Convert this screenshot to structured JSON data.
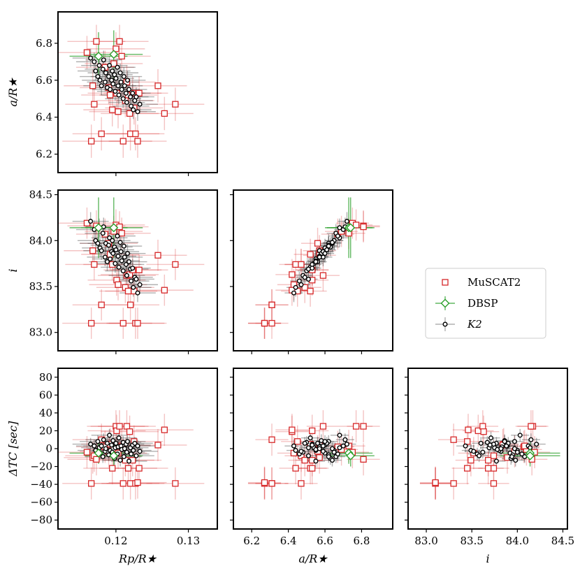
{
  "chart_data": {
    "type": "corner-scatter",
    "legend": {
      "placement": "right-middle",
      "entries": [
        {
          "name": "MuSCAT2",
          "marker": "square",
          "color": "#d62728"
        },
        {
          "name": "DBSP",
          "marker": "diamond",
          "color": "#2ca02c"
        },
        {
          "name": "K2",
          "marker": "circle",
          "color": "#000000"
        }
      ]
    },
    "variables": {
      "rp": {
        "label": "Rp/R★",
        "range": [
          0.112,
          0.134
        ],
        "ticks": [
          0.12,
          0.13
        ],
        "tick_labels": [
          "0.12",
          "0.13"
        ]
      },
      "a": {
        "label": "a/R★",
        "range": [
          6.1,
          6.97
        ],
        "ticks": [
          6.2,
          6.4,
          6.6,
          6.8
        ],
        "tick_labels": [
          "6.2",
          "6.4",
          "6.6",
          "6.8"
        ]
      },
      "i": {
        "label": "i",
        "range": [
          82.8,
          84.55
        ],
        "ticks": [
          83.0,
          83.5,
          84.0,
          84.5
        ],
        "tick_labels": [
          "83.0",
          "83.5",
          "84.0",
          "84.5"
        ]
      },
      "dt": {
        "label": "ΔTC [sec]",
        "range": [
          -90,
          90
        ],
        "ticks": [
          -80,
          -60,
          -40,
          -20,
          0,
          20,
          40,
          60,
          80
        ],
        "tick_labels": [
          "−80",
          "−60",
          "−40",
          "−20",
          "0",
          "20",
          "40",
          "60",
          "80"
        ]
      }
    },
    "panels": [
      {
        "name": "a-vs-rp",
        "x": "rp",
        "y": "a",
        "show_x_ticklabels": false,
        "show_y_ticklabels": true
      },
      {
        "name": "i-vs-rp",
        "x": "rp",
        "y": "i",
        "show_x_ticklabels": false,
        "show_y_ticklabels": true
      },
      {
        "name": "i-vs-a",
        "x": "a",
        "y": "i",
        "show_x_ticklabels": false,
        "show_y_ticklabels": false
      },
      {
        "name": "dt-vs-rp",
        "x": "rp",
        "y": "dt",
        "show_x_ticklabels": true,
        "show_y_ticklabels": true
      },
      {
        "name": "dt-vs-a",
        "x": "a",
        "y": "dt",
        "show_x_ticklabels": true,
        "show_y_ticklabels": false
      },
      {
        "name": "dt-vs-i",
        "x": "i",
        "y": "dt",
        "show_x_ticklabels": true,
        "show_y_ticklabels": false
      }
    ],
    "series": [
      {
        "name": "MuSCAT2",
        "errors": {
          "rp": 0.004,
          "a": 0.09,
          "i": 0.17,
          "dt": 18
        },
        "points": [
          {
            "rp": 0.116,
            "a": 6.75,
            "i": 84.19,
            "dt": -4
          },
          {
            "rp": 0.1168,
            "a": 6.57,
            "i": 83.89,
            "dt": -10
          },
          {
            "rp": 0.117,
            "a": 6.47,
            "i": 83.74,
            "dt": -8
          },
          {
            "rp": 0.1166,
            "a": 6.27,
            "i": 83.1,
            "dt": -39
          },
          {
            "rp": 0.1173,
            "a": 6.81,
            "i": 84.16,
            "dt": -12
          },
          {
            "rp": 0.118,
            "a": 6.31,
            "i": 83.3,
            "dt": 10
          },
          {
            "rp": 0.1185,
            "a": 6.67,
            "i": 84.07,
            "dt": 2
          },
          {
            "rp": 0.119,
            "a": 6.56,
            "i": 83.97,
            "dt": -3
          },
          {
            "rp": 0.1192,
            "a": 6.52,
            "i": 83.85,
            "dt": 5
          },
          {
            "rp": 0.1195,
            "a": 6.44,
            "i": 83.74,
            "dt": -22
          },
          {
            "rp": 0.1197,
            "a": 6.69,
            "i": 84.1,
            "dt": -1
          },
          {
            "rp": 0.12,
            "a": 6.77,
            "i": 84.17,
            "dt": 25
          },
          {
            "rp": 0.1201,
            "a": 6.53,
            "i": 83.57,
            "dt": 20
          },
          {
            "rp": 0.1203,
            "a": 6.43,
            "i": 83.52,
            "dt": -5
          },
          {
            "rp": 0.1205,
            "a": 6.81,
            "i": 84.15,
            "dt": 25
          },
          {
            "rp": 0.1208,
            "a": 6.73,
            "i": 84.08,
            "dt": 3
          },
          {
            "rp": 0.121,
            "a": 6.27,
            "i": 83.1,
            "dt": -39
          },
          {
            "rp": 0.1213,
            "a": 6.49,
            "i": 83.49,
            "dt": -13
          },
          {
            "rp": 0.1215,
            "a": 6.59,
            "i": 83.62,
            "dt": 25
          },
          {
            "rp": 0.1217,
            "a": 6.52,
            "i": 83.45,
            "dt": -22
          },
          {
            "rp": 0.1219,
            "a": 6.42,
            "i": 83.63,
            "dt": 19
          },
          {
            "rp": 0.122,
            "a": 6.31,
            "i": 83.3,
            "dt": -39
          },
          {
            "rp": 0.1223,
            "a": 6.53,
            "i": 83.68,
            "dt": -13
          },
          {
            "rp": 0.1225,
            "a": 6.45,
            "i": 83.45,
            "dt": 8
          },
          {
            "rp": 0.1227,
            "a": 6.31,
            "i": 83.1,
            "dt": -39
          },
          {
            "rp": 0.123,
            "a": 6.27,
            "i": 83.1,
            "dt": -38
          },
          {
            "rp": 0.1232,
            "a": 6.53,
            "i": 83.68,
            "dt": -22
          },
          {
            "rp": 0.1258,
            "a": 6.57,
            "i": 83.84,
            "dt": 4
          },
          {
            "rp": 0.1267,
            "a": 6.42,
            "i": 83.46,
            "dt": 21
          },
          {
            "rp": 0.1282,
            "a": 6.47,
            "i": 83.74,
            "dt": -39
          }
        ]
      },
      {
        "name": "DBSP",
        "errors": {
          "rp": 0.004,
          "a": 0.13,
          "i": 0.33,
          "dt": 12
        },
        "points": [
          {
            "rp": 0.1176,
            "a": 6.73,
            "i": 84.14,
            "dt": -5
          },
          {
            "rp": 0.1197,
            "a": 6.74,
            "i": 84.14,
            "dt": -8
          }
        ]
      },
      {
        "name": "K2",
        "errors": {
          "rp": 0.0025,
          "a": 0.05,
          "i": 0.1,
          "dt": 7
        },
        "points": [
          {
            "rp": 0.1165,
            "a": 6.72,
            "i": 84.21,
            "dt": 5
          },
          {
            "rp": 0.117,
            "a": 6.7,
            "i": 84.12,
            "dt": 3
          },
          {
            "rp": 0.1172,
            "a": 6.65,
            "i": 84.0,
            "dt": -2
          },
          {
            "rp": 0.1175,
            "a": 6.62,
            "i": 83.97,
            "dt": 8
          },
          {
            "rp": 0.1177,
            "a": 6.68,
            "i": 84.14,
            "dt": 1
          },
          {
            "rp": 0.1178,
            "a": 6.6,
            "i": 83.92,
            "dt": -5
          },
          {
            "rp": 0.118,
            "a": 6.57,
            "i": 83.89,
            "dt": 3
          },
          {
            "rp": 0.1182,
            "a": 6.66,
            "i": 84.08,
            "dt": -9
          },
          {
            "rp": 0.1183,
            "a": 6.71,
            "i": 84.15,
            "dt": 10
          },
          {
            "rp": 0.1185,
            "a": 6.59,
            "i": 83.82,
            "dt": -3
          },
          {
            "rp": 0.1186,
            "a": 6.64,
            "i": 83.97,
            "dt": 0
          },
          {
            "rp": 0.1188,
            "a": 6.56,
            "i": 83.77,
            "dt": 6
          },
          {
            "rp": 0.119,
            "a": 6.62,
            "i": 83.95,
            "dt": -7
          },
          {
            "rp": 0.1191,
            "a": 6.68,
            "i": 84.03,
            "dt": 15
          },
          {
            "rp": 0.1192,
            "a": 6.55,
            "i": 83.8,
            "dt": -2
          },
          {
            "rp": 0.1194,
            "a": 6.6,
            "i": 83.88,
            "dt": 4
          },
          {
            "rp": 0.1195,
            "a": 6.65,
            "i": 84.0,
            "dt": -4
          },
          {
            "rp": 0.1196,
            "a": 6.58,
            "i": 83.86,
            "dt": 9
          },
          {
            "rp": 0.1198,
            "a": 6.63,
            "i": 83.93,
            "dt": -11
          },
          {
            "rp": 0.1199,
            "a": 6.54,
            "i": 83.75,
            "dt": 1
          },
          {
            "rp": 0.12,
            "a": 6.61,
            "i": 83.9,
            "dt": 6
          },
          {
            "rp": 0.1202,
            "a": 6.67,
            "i": 84.05,
            "dt": -6
          },
          {
            "rp": 0.1203,
            "a": 6.57,
            "i": 83.83,
            "dt": 2
          },
          {
            "rp": 0.1204,
            "a": 6.52,
            "i": 83.71,
            "dt": 12
          },
          {
            "rp": 0.1206,
            "a": 6.64,
            "i": 83.98,
            "dt": -13
          },
          {
            "rp": 0.1207,
            "a": 6.59,
            "i": 83.88,
            "dt": 3
          },
          {
            "rp": 0.1208,
            "a": 6.55,
            "i": 83.78,
            "dt": -1
          },
          {
            "rp": 0.121,
            "a": 6.5,
            "i": 83.67,
            "dt": 7
          },
          {
            "rp": 0.1211,
            "a": 6.62,
            "i": 83.94,
            "dt": -9
          },
          {
            "rp": 0.1212,
            "a": 6.57,
            "i": 83.82,
            "dt": 0
          },
          {
            "rp": 0.1214,
            "a": 6.53,
            "i": 83.74,
            "dt": 5
          },
          {
            "rp": 0.1215,
            "a": 6.48,
            "i": 83.62,
            "dt": -4
          },
          {
            "rp": 0.1216,
            "a": 6.6,
            "i": 83.86,
            "dt": 8
          },
          {
            "rp": 0.1218,
            "a": 6.55,
            "i": 83.77,
            "dt": -14
          },
          {
            "rp": 0.122,
            "a": 6.51,
            "i": 83.69,
            "dt": 1
          },
          {
            "rp": 0.1221,
            "a": 6.46,
            "i": 83.56,
            "dt": -6
          },
          {
            "rp": 0.1223,
            "a": 6.53,
            "i": 83.7,
            "dt": 4
          },
          {
            "rp": 0.1224,
            "a": 6.44,
            "i": 83.49,
            "dt": -2
          },
          {
            "rp": 0.1226,
            "a": 6.49,
            "i": 83.6,
            "dt": 6
          },
          {
            "rp": 0.1228,
            "a": 6.51,
            "i": 83.58,
            "dt": -8
          },
          {
            "rp": 0.123,
            "a": 6.43,
            "i": 83.43,
            "dt": 3
          },
          {
            "rp": 0.1233,
            "a": 6.47,
            "i": 83.52,
            "dt": -3
          }
        ]
      }
    ]
  }
}
